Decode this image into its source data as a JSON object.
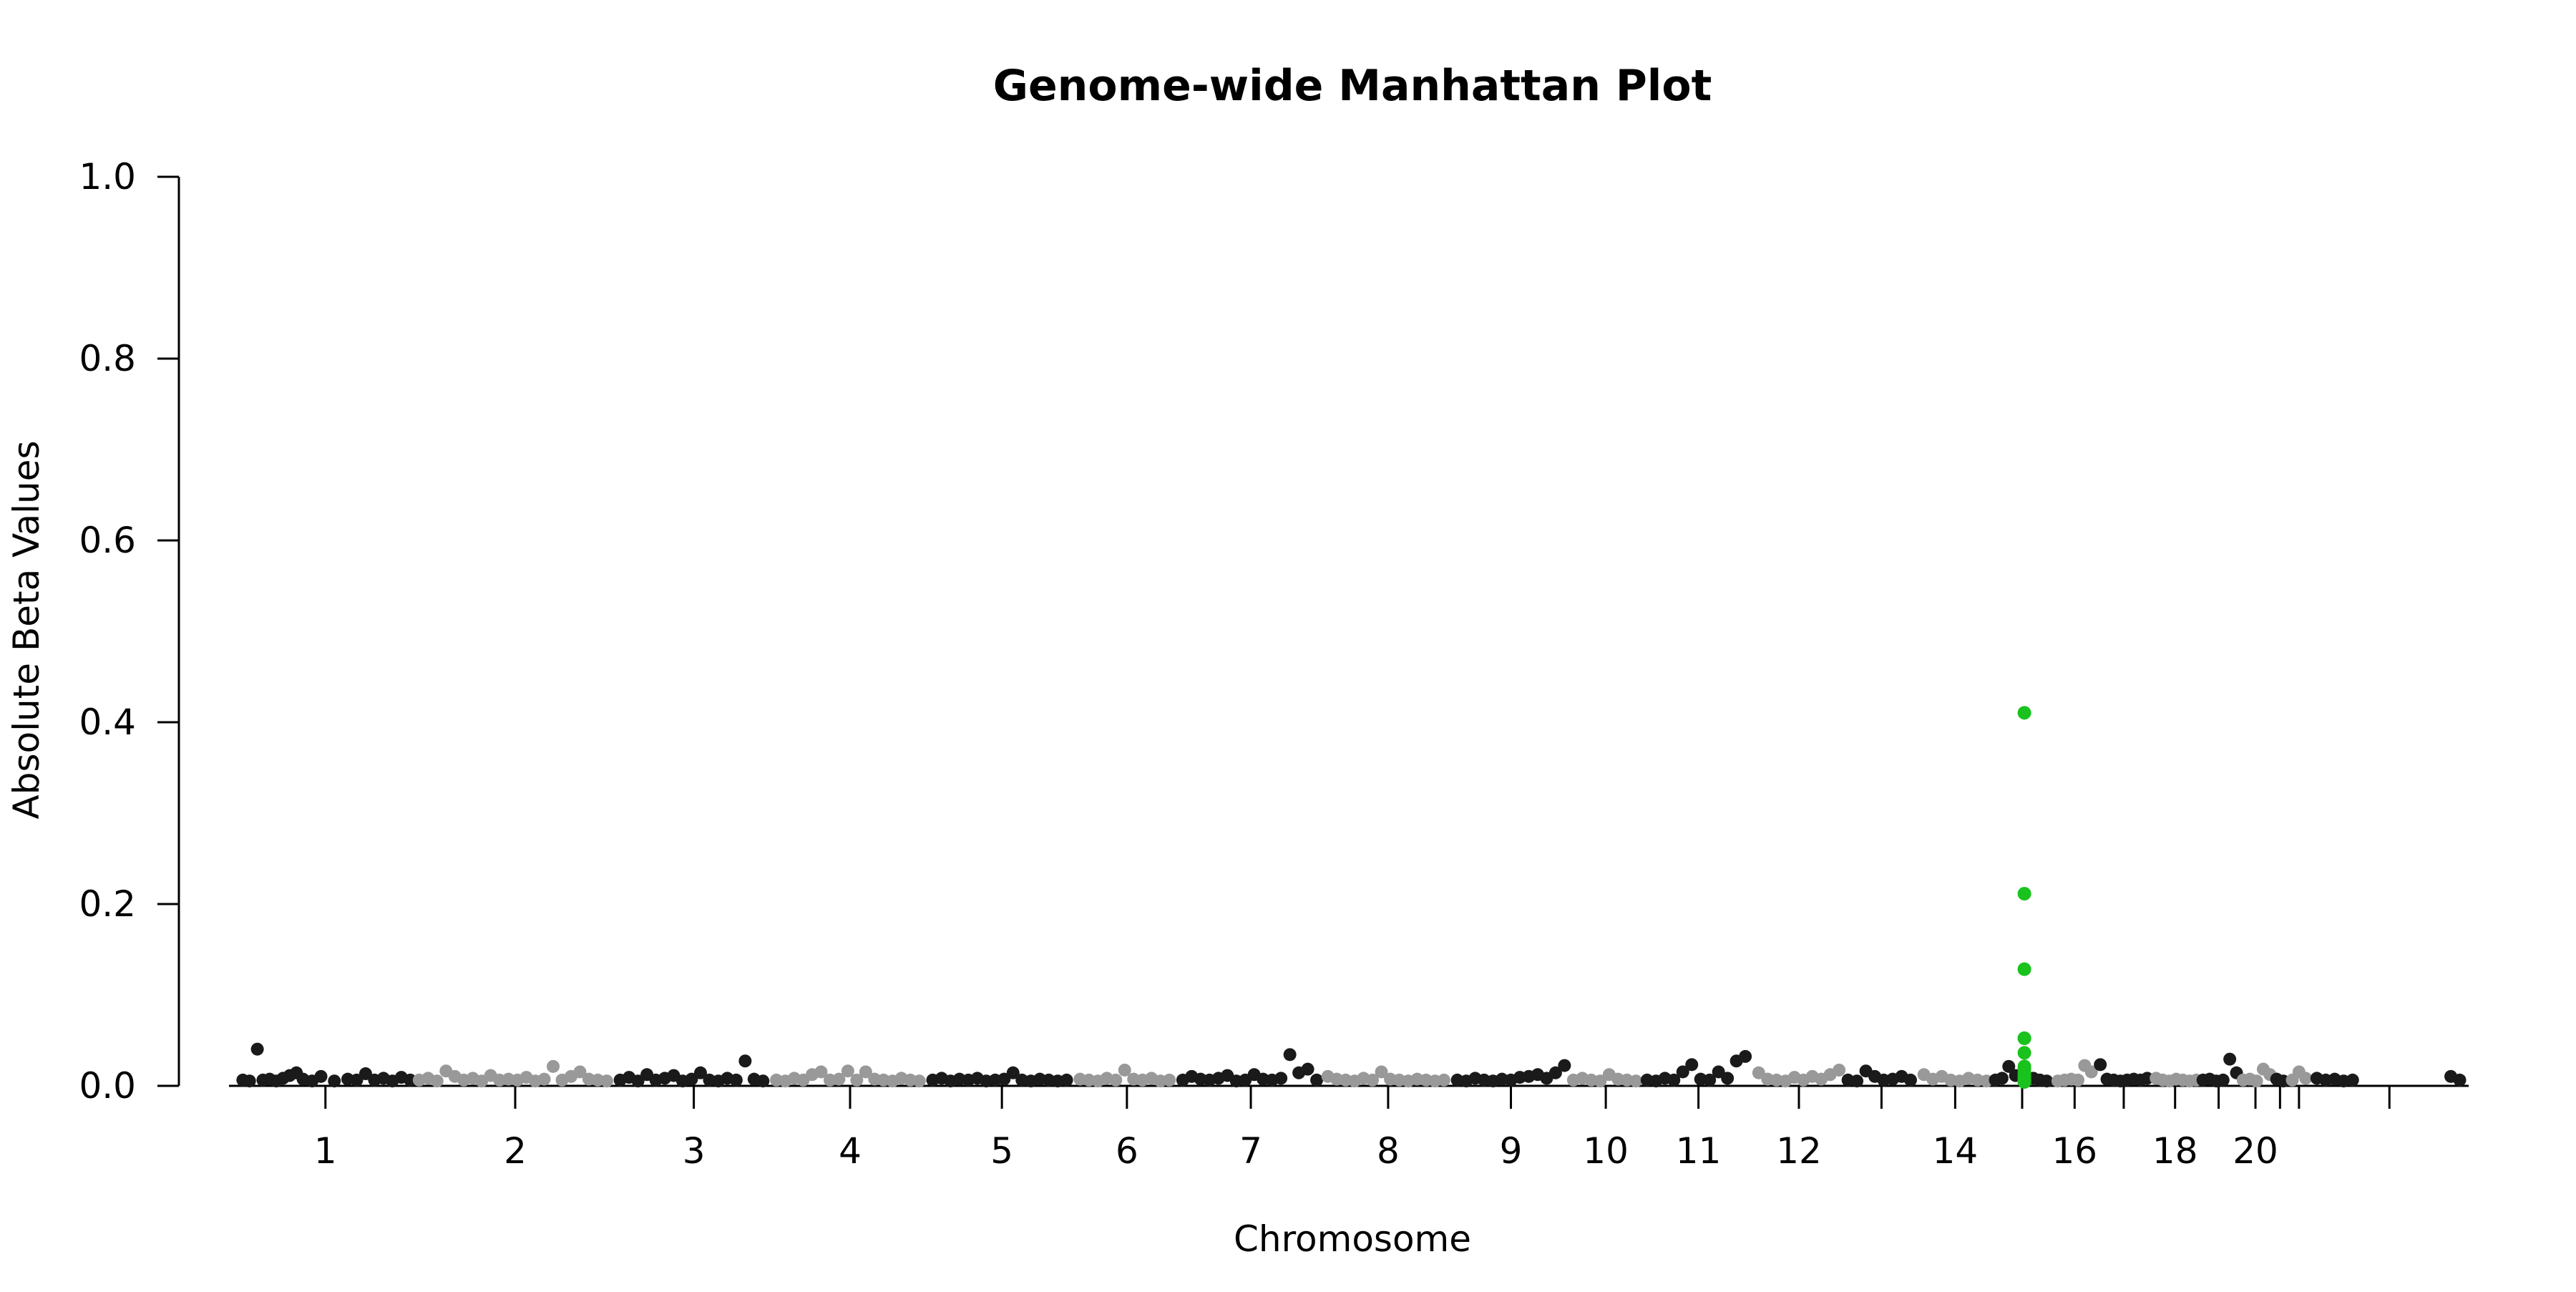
{
  "chart_data": {
    "type": "scatter",
    "title": "Genome-wide Manhattan Plot",
    "xlabel": "Chromosome",
    "ylabel": "Absolute Beta Values",
    "ylim": [
      0,
      1.0
    ],
    "yticks": [
      "0.0",
      "0.2",
      "0.4",
      "0.6",
      "0.8",
      "1.0"
    ],
    "xtick_labels": [
      "1",
      "2",
      "3",
      "4",
      "5",
      "6",
      "7",
      "8",
      "9",
      "10",
      "11",
      "12",
      "14",
      "16",
      "18",
      "20"
    ],
    "chromosomes": [
      "1",
      "2",
      "3",
      "4",
      "5",
      "6",
      "7",
      "8",
      "9",
      "10",
      "11",
      "12",
      "13",
      "14",
      "15",
      "16",
      "17",
      "18",
      "19",
      "20",
      "21",
      "22",
      "23"
    ],
    "chromosome_bounds": [
      0.0,
      0.08,
      0.17,
      0.24,
      0.31,
      0.376,
      0.422,
      0.487,
      0.545,
      0.597,
      0.63,
      0.68,
      0.72,
      0.754,
      0.786,
      0.814,
      0.833,
      0.858,
      0.879,
      0.897,
      0.912,
      0.919,
      0.929,
      1.0
    ],
    "colors": {
      "odd_chromosome": "#1a1a1a",
      "even_chromosome": "#999999",
      "highlight": "#19c21d"
    },
    "grid": false,
    "legend": "none",
    "highlight": {
      "chromosome": "15",
      "x": 0.801,
      "values": [
        0.408,
        0.209,
        0.126,
        0.05,
        0.05,
        0.034,
        0.019,
        0.016,
        0.012,
        0.009,
        0.007,
        0.005,
        0.004,
        0.003,
        0.002,
        0.002
      ]
    },
    "series": [
      {
        "name": "1",
        "x": [
          0.003,
          0.006,
          0.0095,
          0.012,
          0.015,
          0.018,
          0.021,
          0.024,
          0.027,
          0.03,
          0.034,
          0.038,
          0.044,
          0.05,
          0.054,
          0.058,
          0.062,
          0.066,
          0.07,
          0.074,
          0.078
        ],
        "values": [
          0.004,
          0.003,
          0.038,
          0.004,
          0.005,
          0.003,
          0.006,
          0.009,
          0.012,
          0.005,
          0.003,
          0.008,
          0.003,
          0.005,
          0.004,
          0.011,
          0.004,
          0.006,
          0.003,
          0.007,
          0.004
        ]
      },
      {
        "name": "2",
        "x": [
          0.082,
          0.086,
          0.09,
          0.094,
          0.098,
          0.102,
          0.106,
          0.11,
          0.114,
          0.118,
          0.122,
          0.126,
          0.13,
          0.134,
          0.138,
          0.142,
          0.146,
          0.15,
          0.154,
          0.158,
          0.162,
          0.166
        ],
        "values": [
          0.004,
          0.006,
          0.003,
          0.014,
          0.008,
          0.004,
          0.006,
          0.003,
          0.009,
          0.004,
          0.005,
          0.004,
          0.007,
          0.003,
          0.005,
          0.019,
          0.004,
          0.008,
          0.013,
          0.005,
          0.004,
          0.003
        ]
      },
      {
        "name": "3",
        "x": [
          0.172,
          0.176,
          0.18,
          0.184,
          0.188,
          0.192,
          0.196,
          0.2,
          0.204,
          0.208,
          0.212,
          0.216,
          0.22,
          0.224,
          0.228,
          0.232,
          0.236
        ],
        "values": [
          0.004,
          0.007,
          0.003,
          0.01,
          0.004,
          0.006,
          0.009,
          0.003,
          0.005,
          0.012,
          0.004,
          0.003,
          0.006,
          0.004,
          0.025,
          0.005,
          0.003
        ]
      },
      {
        "name": "4",
        "x": [
          0.242,
          0.246,
          0.25,
          0.254,
          0.258,
          0.262,
          0.266,
          0.27,
          0.274,
          0.278,
          0.282,
          0.286,
          0.29,
          0.294,
          0.298,
          0.302,
          0.306
        ],
        "values": [
          0.004,
          0.003,
          0.006,
          0.004,
          0.01,
          0.013,
          0.004,
          0.005,
          0.014,
          0.004,
          0.013,
          0.005,
          0.004,
          0.003,
          0.006,
          0.004,
          0.003
        ]
      },
      {
        "name": "5",
        "x": [
          0.312,
          0.316,
          0.32,
          0.324,
          0.328,
          0.332,
          0.336,
          0.34,
          0.344,
          0.348,
          0.352,
          0.356,
          0.36,
          0.364,
          0.368,
          0.372
        ],
        "values": [
          0.004,
          0.006,
          0.003,
          0.005,
          0.004,
          0.006,
          0.003,
          0.004,
          0.005,
          0.012,
          0.004,
          0.003,
          0.005,
          0.004,
          0.003,
          0.004
        ]
      },
      {
        "name": "6",
        "x": [
          0.378,
          0.382,
          0.386,
          0.39,
          0.394,
          0.398,
          0.402,
          0.406,
          0.41,
          0.414,
          0.418
        ],
        "values": [
          0.005,
          0.004,
          0.003,
          0.006,
          0.004,
          0.015,
          0.005,
          0.004,
          0.006,
          0.003,
          0.004
        ]
      },
      {
        "name": "7",
        "x": [
          0.424,
          0.428,
          0.432,
          0.436,
          0.44,
          0.444,
          0.448,
          0.452,
          0.456,
          0.46,
          0.464,
          0.468,
          0.472,
          0.476,
          0.48,
          0.484
        ],
        "values": [
          0.004,
          0.008,
          0.005,
          0.004,
          0.006,
          0.009,
          0.003,
          0.004,
          0.01,
          0.005,
          0.004,
          0.006,
          0.032,
          0.012,
          0.016,
          0.004
        ]
      },
      {
        "name": "8",
        "x": [
          0.489,
          0.493,
          0.497,
          0.501,
          0.505,
          0.509,
          0.513,
          0.517,
          0.521,
          0.525,
          0.529,
          0.533,
          0.537,
          0.541
        ],
        "values": [
          0.008,
          0.005,
          0.004,
          0.003,
          0.006,
          0.004,
          0.013,
          0.005,
          0.004,
          0.003,
          0.005,
          0.004,
          0.003,
          0.004
        ]
      },
      {
        "name": "9",
        "x": [
          0.547,
          0.551,
          0.555,
          0.559,
          0.563,
          0.567,
          0.571,
          0.575,
          0.579,
          0.583,
          0.587,
          0.591,
          0.595
        ],
        "values": [
          0.004,
          0.003,
          0.006,
          0.004,
          0.003,
          0.005,
          0.004,
          0.007,
          0.008,
          0.01,
          0.006,
          0.012,
          0.02
        ]
      },
      {
        "name": "10",
        "x": [
          0.599,
          0.603,
          0.607,
          0.611,
          0.615,
          0.619,
          0.623,
          0.627
        ],
        "values": [
          0.004,
          0.006,
          0.004,
          0.003,
          0.01,
          0.005,
          0.004,
          0.003
        ]
      },
      {
        "name": "11",
        "x": [
          0.632,
          0.636,
          0.64,
          0.644,
          0.648,
          0.652,
          0.656,
          0.66,
          0.664,
          0.668,
          0.672,
          0.676
        ],
        "values": [
          0.004,
          0.003,
          0.006,
          0.004,
          0.013,
          0.021,
          0.005,
          0.004,
          0.013,
          0.006,
          0.025,
          0.03
        ]
      },
      {
        "name": "12",
        "x": [
          0.682,
          0.686,
          0.69,
          0.694,
          0.698,
          0.702,
          0.706,
          0.71,
          0.714,
          0.718
        ],
        "values": [
          0.012,
          0.005,
          0.004,
          0.003,
          0.007,
          0.004,
          0.008,
          0.005,
          0.01,
          0.015
        ]
      },
      {
        "name": "13",
        "x": [
          0.722,
          0.726,
          0.73,
          0.734,
          0.738,
          0.742,
          0.746,
          0.75
        ],
        "values": [
          0.004,
          0.003,
          0.014,
          0.008,
          0.004,
          0.005,
          0.008,
          0.004
        ]
      },
      {
        "name": "14",
        "x": [
          0.756,
          0.76,
          0.764,
          0.768,
          0.772,
          0.776,
          0.78,
          0.784
        ],
        "values": [
          0.01,
          0.005,
          0.008,
          0.004,
          0.003,
          0.006,
          0.004,
          0.003
        ]
      },
      {
        "name": "15",
        "x": [
          0.788,
          0.791,
          0.794,
          0.797,
          0.805,
          0.808,
          0.811
        ],
        "values": [
          0.004,
          0.006,
          0.019,
          0.009,
          0.006,
          0.004,
          0.003
        ]
      },
      {
        "name": "16",
        "x": [
          0.816,
          0.819,
          0.822,
          0.825,
          0.828,
          0.831
        ],
        "values": [
          0.003,
          0.004,
          0.005,
          0.004,
          0.02,
          0.013
        ]
      },
      {
        "name": "17",
        "x": [
          0.835,
          0.838,
          0.841,
          0.844,
          0.847,
          0.85,
          0.853,
          0.856
        ],
        "values": [
          0.021,
          0.005,
          0.004,
          0.003,
          0.004,
          0.005,
          0.004,
          0.006
        ]
      },
      {
        "name": "18",
        "x": [
          0.86,
          0.863,
          0.866,
          0.869,
          0.872,
          0.875,
          0.878
        ],
        "values": [
          0.006,
          0.004,
          0.003,
          0.005,
          0.004,
          0.003,
          0.004
        ]
      },
      {
        "name": "19",
        "x": [
          0.881,
          0.884,
          0.887,
          0.89,
          0.893,
          0.896
        ],
        "values": [
          0.004,
          0.005,
          0.003,
          0.004,
          0.027,
          0.012
        ]
      },
      {
        "name": "20",
        "x": [
          0.899,
          0.902,
          0.905,
          0.908,
          0.911
        ],
        "values": [
          0.004,
          0.005,
          0.003,
          0.016,
          0.01
        ]
      },
      {
        "name": "21",
        "x": [
          0.914,
          0.917
        ],
        "values": [
          0.005,
          0.003
        ]
      },
      {
        "name": "22",
        "x": [
          0.921,
          0.924,
          0.927
        ],
        "values": [
          0.004,
          0.013,
          0.006
        ]
      },
      {
        "name": "23",
        "x": [
          0.932,
          0.936,
          0.94,
          0.944,
          0.948,
          0.992,
          0.996
        ],
        "values": [
          0.006,
          0.004,
          0.005,
          0.003,
          0.004,
          0.008,
          0.004
        ]
      }
    ]
  }
}
